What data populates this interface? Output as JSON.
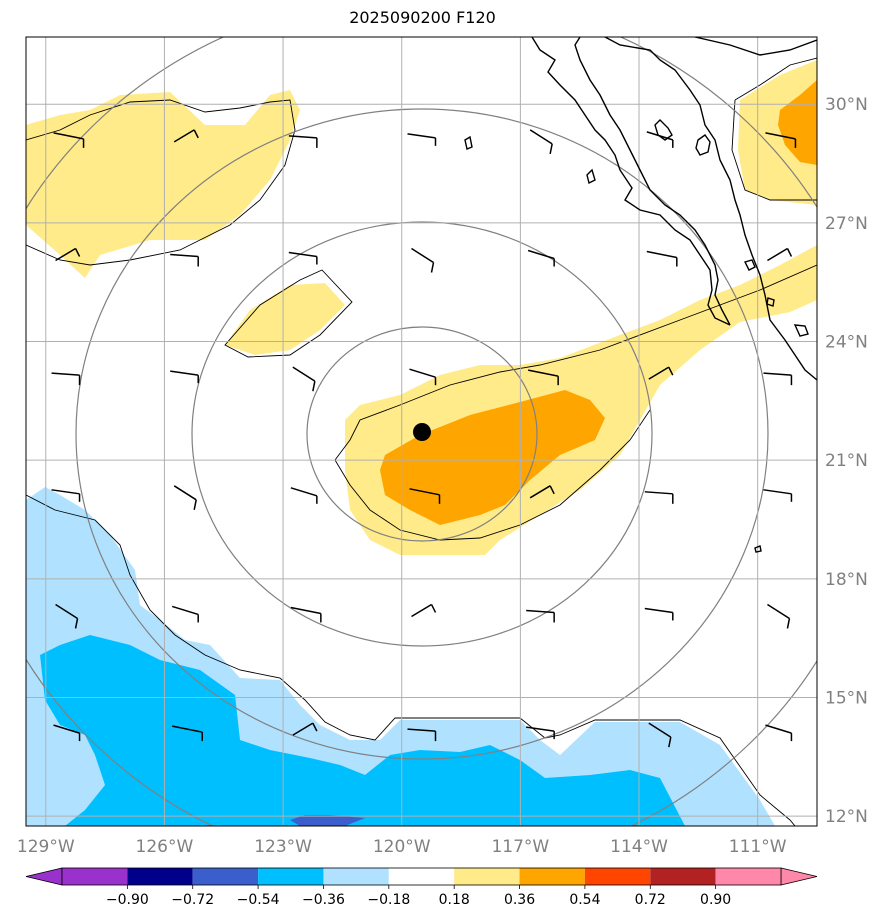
{
  "title": "2025090200 F120",
  "map": {
    "lon_labels": [
      "129°W",
      "126°W",
      "123°W",
      "120°W",
      "117°W",
      "114°W",
      "111°W"
    ],
    "lon_values": [
      -129,
      -126,
      -123,
      -120,
      -117,
      -114,
      -111
    ],
    "lat_labels": [
      "30°N",
      "27°N",
      "24°N",
      "21°N",
      "18°N",
      "15°N",
      "12°N"
    ],
    "lat_values": [
      30,
      27,
      24,
      21,
      18,
      15,
      12
    ],
    "extent": {
      "lon_min": -129.5,
      "lon_max": -109.5,
      "lat_min": 11.75,
      "lat_max": 31.7
    },
    "center_marker": {
      "lon": -119.5,
      "lat": 21.7,
      "name": "storm-center"
    },
    "label_color": "#808080",
    "gridline_color": "#b0b0b0"
  },
  "colorbar": {
    "ticks": [
      "−0.90",
      "−0.72",
      "−0.54",
      "−0.36",
      "−0.18",
      "0.18",
      "0.36",
      "0.54",
      "0.72",
      "0.90"
    ],
    "colors": [
      "#9932cc",
      "#00008b",
      "#3a5fcd",
      "#00bfff",
      "#b0e2ff",
      "#ffffff",
      "#ffeb8a",
      "#ffa500",
      "#ff4500",
      "#b22222",
      "#ff88aa",
      "#ff88aa"
    ],
    "extend_low_color": "#9932cc",
    "extend_high_color": "#ff88aa"
  }
}
